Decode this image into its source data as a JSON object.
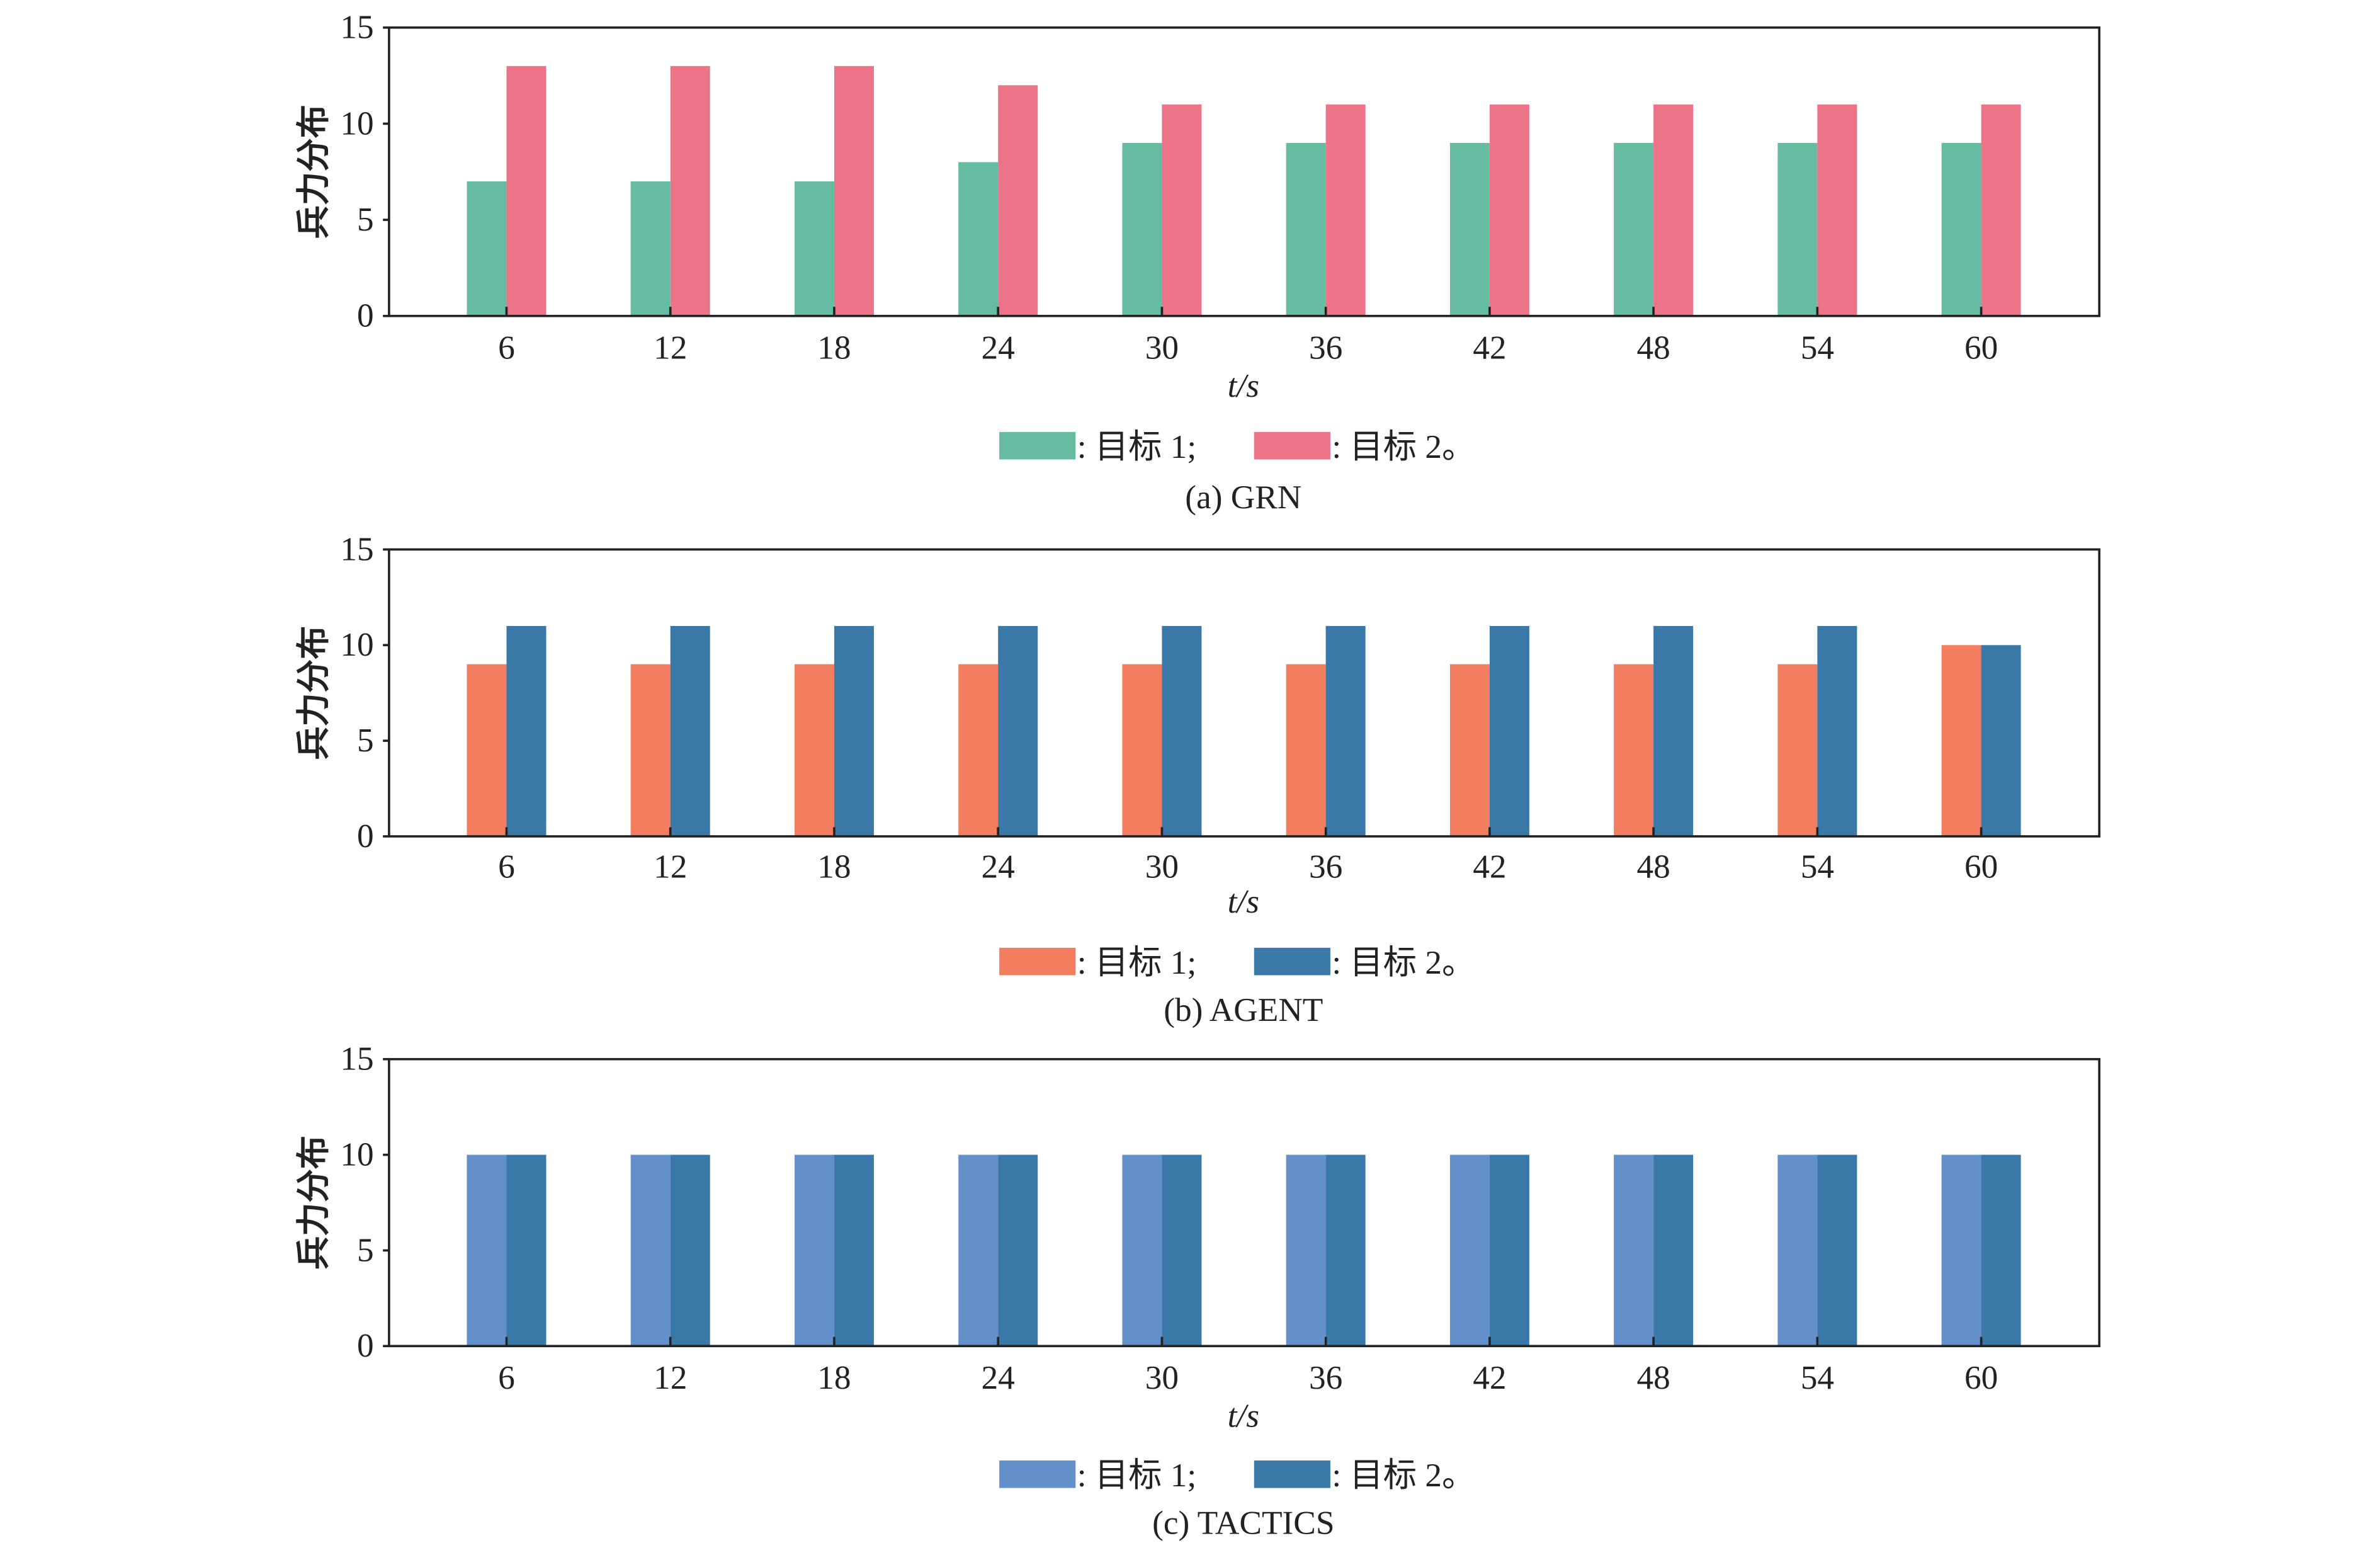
{
  "chart_data": [
    {
      "type": "bar",
      "caption": "(a) GRN",
      "xlabel": "t/s",
      "ylabel": "兵力分布",
      "categories": [
        "6",
        "12",
        "18",
        "24",
        "30",
        "36",
        "42",
        "48",
        "54",
        "60"
      ],
      "ylim": [
        0,
        15
      ],
      "yticks": [
        "0",
        "5",
        "10",
        "15"
      ],
      "grid": false,
      "legend_position": "bottom",
      "series": [
        {
          "name": ": 目标 1;",
          "color": "#66bba3",
          "values": [
            7,
            7,
            7,
            8,
            9,
            9,
            9,
            9,
            9,
            9
          ]
        },
        {
          "name": ": 目标 2。",
          "color": "#ec7489",
          "values": [
            13,
            13,
            13,
            12,
            11,
            11,
            11,
            11,
            11,
            11
          ]
        }
      ]
    },
    {
      "type": "bar",
      "caption": "(b) AGENT",
      "xlabel": "t/s",
      "ylabel": "兵力分布",
      "categories": [
        "6",
        "12",
        "18",
        "24",
        "30",
        "36",
        "42",
        "48",
        "54",
        "60"
      ],
      "ylim": [
        0,
        15
      ],
      "yticks": [
        "0",
        "5",
        "10",
        "15"
      ],
      "grid": false,
      "legend_position": "bottom",
      "series": [
        {
          "name": ": 目标 1;",
          "color": "#f27e5f",
          "values": [
            9,
            9,
            9,
            9,
            9,
            9,
            9,
            9,
            9,
            10
          ]
        },
        {
          "name": ": 目标 2。",
          "color": "#3a78a8",
          "values": [
            11,
            11,
            11,
            11,
            11,
            11,
            11,
            11,
            11,
            10
          ]
        }
      ]
    },
    {
      "type": "bar",
      "caption": "(c) TACTICS",
      "xlabel": "t/s",
      "ylabel": "兵力分布",
      "categories": [
        "6",
        "12",
        "18",
        "24",
        "30",
        "36",
        "42",
        "48",
        "54",
        "60"
      ],
      "ylim": [
        0,
        15
      ],
      "yticks": [
        "0",
        "5",
        "10",
        "15"
      ],
      "grid": false,
      "legend_position": "bottom",
      "series": [
        {
          "name": ": 目标 1;",
          "color": "#6490c9",
          "values": [
            10,
            10,
            10,
            10,
            10,
            10,
            10,
            10,
            10,
            10
          ]
        },
        {
          "name": ": 目标 2。",
          "color": "#3a78a8",
          "values": [
            10,
            10,
            10,
            10,
            10,
            10,
            10,
            10,
            10,
            10
          ]
        }
      ]
    }
  ]
}
